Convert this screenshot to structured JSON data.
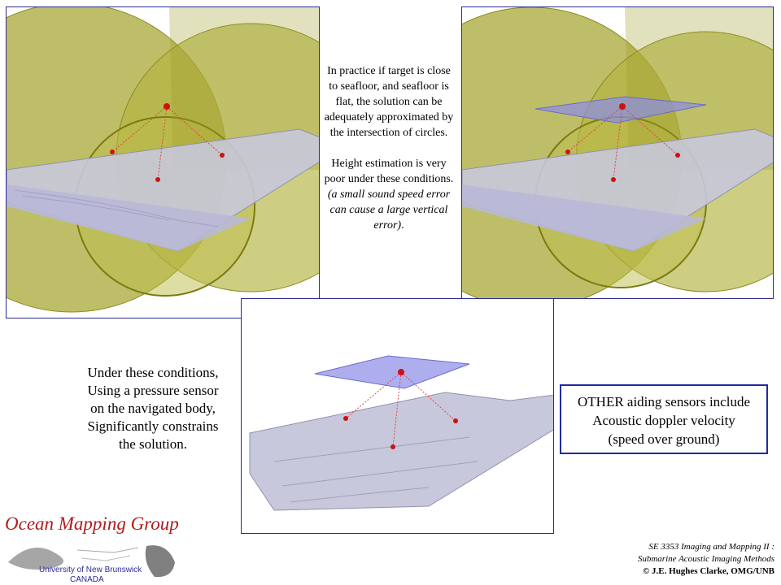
{
  "middle_text": {
    "p1": "In practice if target is close to seafloor, and seafloor is flat, the solution can be adequately approximated by the intersection of circles.",
    "p2_line": "Height estimation is very poor under these conditions.",
    "p2_italic": "(a small sound speed error can cause a large vertical error)",
    "p2_end": "."
  },
  "left_text": {
    "lines": [
      "Under these conditions,",
      "Using a pressure sensor",
      "on the navigated body,",
      "Significantly constrains",
      "the solution."
    ]
  },
  "info_box": {
    "line1": "OTHER aiding sensors include",
    "line2": "Acoustic doppler velocity",
    "line3": "(speed over ground)"
  },
  "logo": {
    "title": "Ocean Mapping Group",
    "sub1": "University of New Brunswick",
    "sub2": "CANADA"
  },
  "footer": {
    "line1": "SE 3353 Imaging and Mapping II :",
    "line2": "Submarine Acoustic Imaging Methods",
    "line3": "© J.E. Hughes Clarke, OMG/UNB"
  },
  "colors": {
    "sphere_fill": "#a8a830",
    "seafloor": "#c8c8e0",
    "plane": "#8c8ce8",
    "marker": "#cc1111",
    "border": "#2a2a90"
  }
}
